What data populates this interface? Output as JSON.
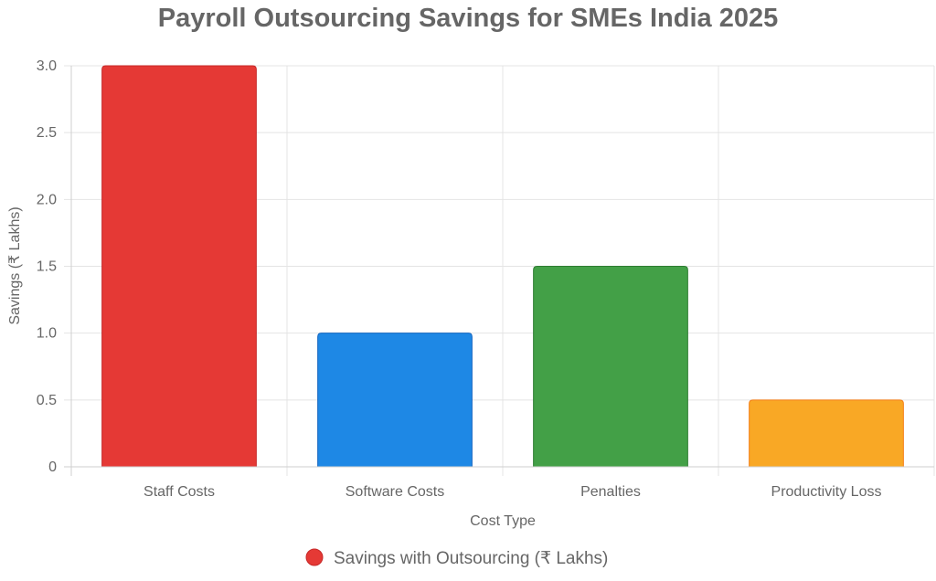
{
  "chart_data": {
    "type": "bar",
    "title": "Payroll Outsourcing Savings for SMEs India 2025",
    "xlabel": "Cost Type",
    "ylabel": "Savings (₹ Lakhs)",
    "categories": [
      "Staff Costs",
      "Software Costs",
      "Penalties",
      "Productivity Loss"
    ],
    "series": [
      {
        "name": "Savings with Outsourcing (₹ Lakhs)",
        "values": [
          3.0,
          1.0,
          1.5,
          0.5
        ]
      }
    ],
    "ylim": [
      0,
      3.0
    ],
    "yticks": [
      "0",
      "0.5",
      "1.0",
      "1.5",
      "2.0",
      "2.5",
      "3.0"
    ],
    "bar_colors": [
      "#e53935",
      "#1e88e5",
      "#43a047",
      "#f9a825"
    ],
    "bar_border_colors": [
      "#c62828",
      "#1565c0",
      "#2e7d32",
      "#f57f17"
    ],
    "grid": true,
    "legend": "bottom",
    "legend_color": "#e53935"
  }
}
